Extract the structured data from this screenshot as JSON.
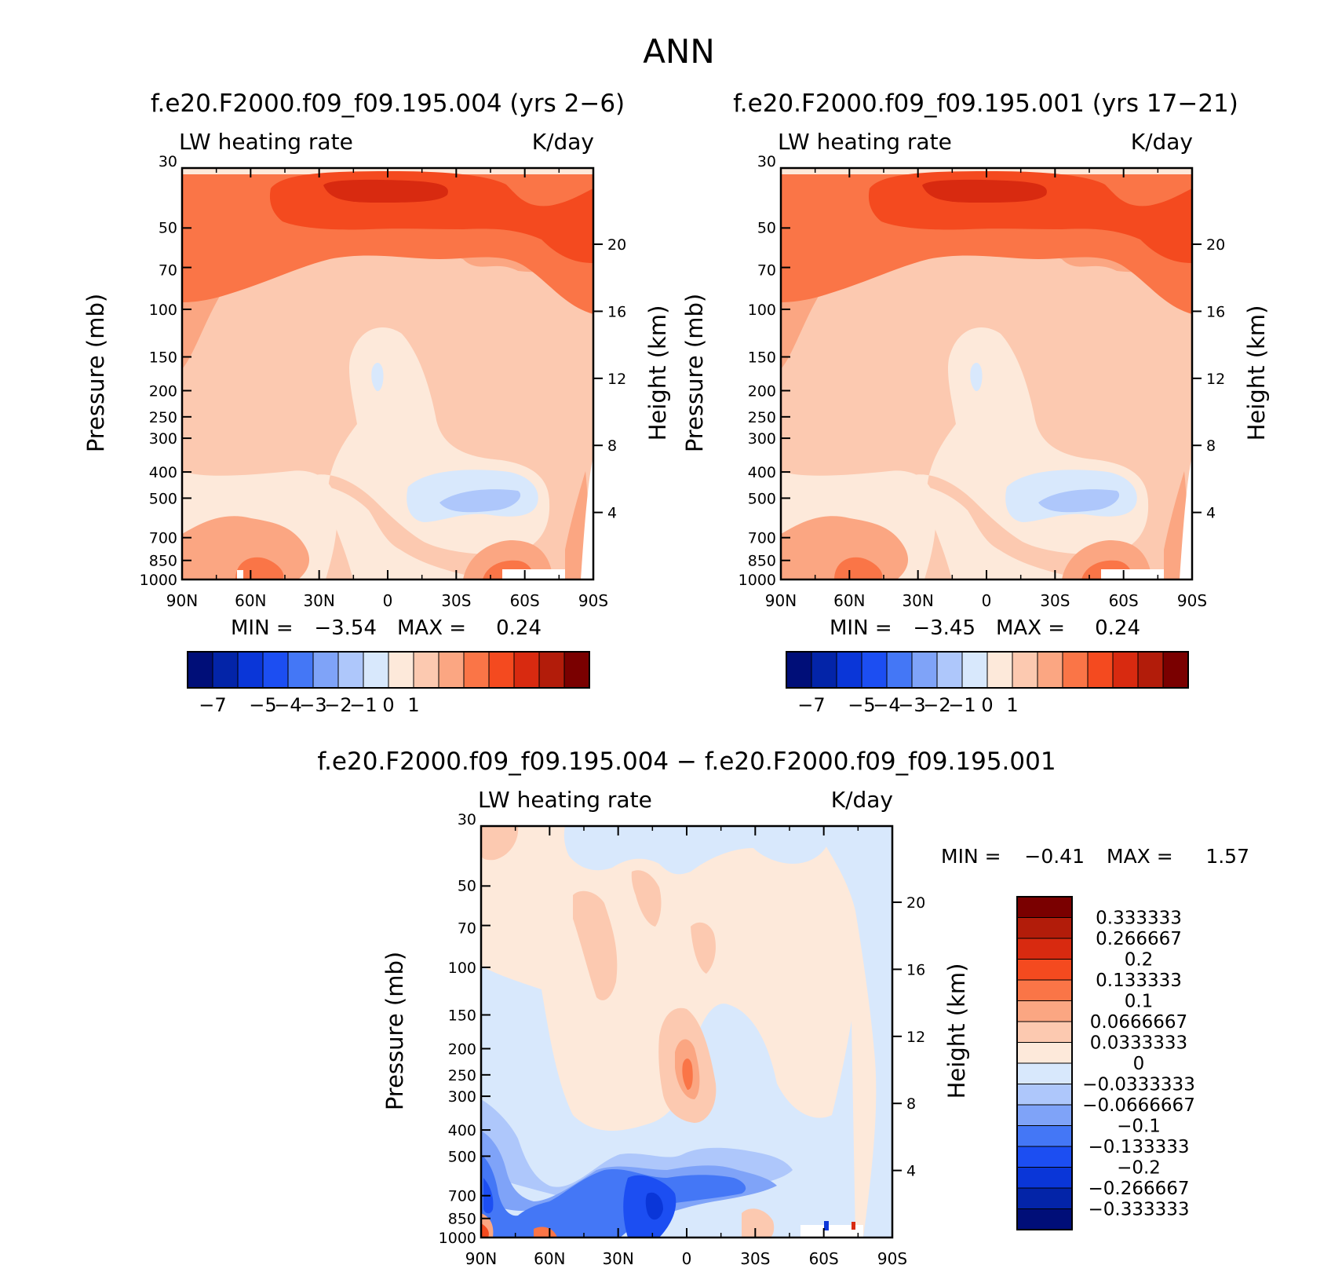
{
  "figure_title": "ANN",
  "colors": {
    "cb_main": [
      "#000e78",
      "#0324a8",
      "#0a36d8",
      "#1c4ef2",
      "#4477f6",
      "#7fa3f8",
      "#aec7fb",
      "#d8e8fc",
      "#fde9da",
      "#fcc9b0",
      "#fba682",
      "#fa7547",
      "#f44a1f",
      "#d82a10",
      "#b21c0a",
      "#7a0000"
    ],
    "cb_diff": [
      "#000e78",
      "#0324a8",
      "#0a36d8",
      "#1c4ef2",
      "#4477f6",
      "#7fa3f8",
      "#aec7fb",
      "#d8e8fc",
      "#fde9da",
      "#fcc9b0",
      "#fba682",
      "#fa7547",
      "#f44a1f",
      "#d82a10",
      "#b21c0a",
      "#7a0000"
    ]
  },
  "chart_data": [
    {
      "type": "heatmap",
      "title": "f.e20.F2000.f09_f09.195.004 (yrs 2−6)",
      "left_label": "LW heating rate",
      "right_label": "K/day",
      "xlabel": "",
      "ylabel": "Pressure (mb)",
      "ylabel_right": "Height (km)",
      "x_ticks": [
        "90N",
        "60N",
        "30N",
        "0",
        "30S",
        "60S",
        "90S"
      ],
      "y_ticks": [
        "30",
        "50",
        "70",
        "100",
        "150",
        "200",
        "250",
        "300",
        "400",
        "500",
        "700",
        "850",
        "1000"
      ],
      "y_ticks_right": [
        "20",
        "16",
        "12",
        "8",
        "4"
      ],
      "stats": {
        "min_label": "MIN =",
        "min": "−3.54",
        "max_label": "MAX =",
        "max": "0.24"
      },
      "colorbar_labels": [
        "−7",
        "−5",
        "−4",
        "−3",
        "−2",
        "−1",
        "0",
        "1"
      ],
      "ylim": [
        1000,
        30
      ],
      "xlim": [
        90,
        -90
      ],
      "y_scale": "log"
    },
    {
      "type": "heatmap",
      "title": "f.e20.F2000.f09_f09.195.001 (yrs 17−21)",
      "left_label": "LW heating rate",
      "right_label": "K/day",
      "xlabel": "",
      "ylabel": "Pressure (mb)",
      "ylabel_right": "Height (km)",
      "x_ticks": [
        "90N",
        "60N",
        "30N",
        "0",
        "30S",
        "60S",
        "90S"
      ],
      "y_ticks": [
        "30",
        "50",
        "70",
        "100",
        "150",
        "200",
        "250",
        "300",
        "400",
        "500",
        "700",
        "850",
        "1000"
      ],
      "y_ticks_right": [
        "20",
        "16",
        "12",
        "8",
        "4"
      ],
      "stats": {
        "min_label": "MIN =",
        "min": "−3.45",
        "max_label": "MAX =",
        "max": "0.24"
      },
      "colorbar_labels": [
        "−7",
        "−5",
        "−4",
        "−3",
        "−2",
        "−1",
        "0",
        "1"
      ],
      "ylim": [
        1000,
        30
      ],
      "xlim": [
        90,
        -90
      ],
      "y_scale": "log"
    },
    {
      "type": "heatmap",
      "title": "f.e20.F2000.f09_f09.195.004 − f.e20.F2000.f09_f09.195.001",
      "left_label": "LW heating rate",
      "right_label": "K/day",
      "xlabel": "",
      "ylabel": "Pressure (mb)",
      "ylabel_right": "Height (km)",
      "x_ticks": [
        "90N",
        "60N",
        "30N",
        "0",
        "30S",
        "60S",
        "90S"
      ],
      "y_ticks": [
        "30",
        "50",
        "70",
        "100",
        "150",
        "200",
        "250",
        "300",
        "400",
        "500",
        "700",
        "850",
        "1000"
      ],
      "y_ticks_right": [
        "20",
        "16",
        "12",
        "8",
        "4"
      ],
      "stats": {
        "min_label": "MIN =",
        "min": "−0.41",
        "max_label": "MAX =",
        "max": "1.57"
      },
      "colorbar_labels": [
        "0.333333",
        "0.266667",
        "0.2",
        "0.133333",
        "0.1",
        "0.0666667",
        "0.0333333",
        "0",
        "−0.0333333",
        "−0.0666667",
        "−0.1",
        "−0.133333",
        "−0.2",
        "−0.266667",
        "−0.333333"
      ],
      "ylim": [
        1000,
        30
      ],
      "xlim": [
        90,
        -90
      ],
      "y_scale": "log"
    }
  ]
}
